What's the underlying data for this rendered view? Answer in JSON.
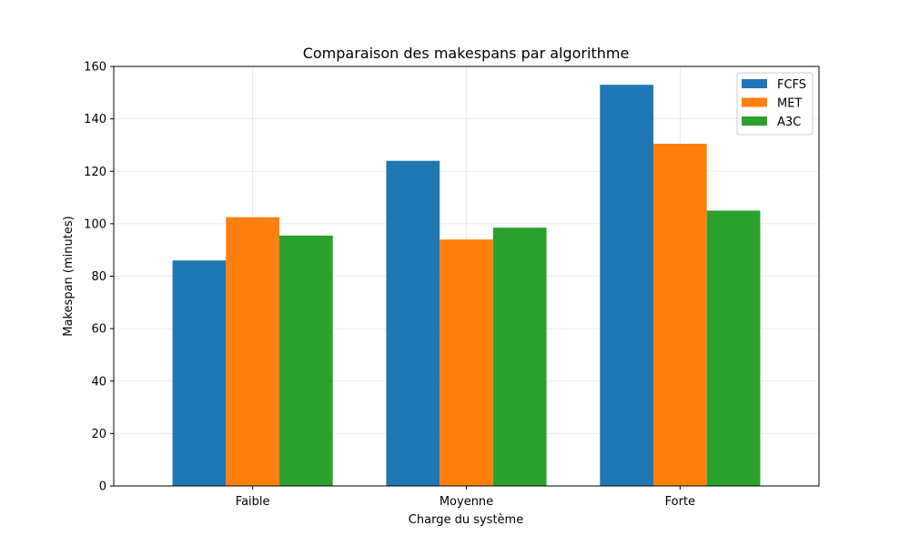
{
  "chart_data": {
    "type": "bar",
    "title": "Comparaison des makespans par algorithme",
    "xlabel": "Charge du système",
    "ylabel": "Makespan (minutes)",
    "categories": [
      "Faible",
      "Moyenne",
      "Forte"
    ],
    "series": [
      {
        "name": "FCFS",
        "color": "#1f77b4",
        "values": [
          86,
          124,
          153
        ]
      },
      {
        "name": "MET",
        "color": "#ff7f0e",
        "values": [
          102.5,
          94,
          130.5
        ]
      },
      {
        "name": "A3C",
        "color": "#2ca02c",
        "values": [
          95.5,
          98.5,
          105
        ]
      }
    ],
    "ylim": [
      0,
      160
    ],
    "yticks": [
      "0",
      "20",
      "40",
      "60",
      "80",
      "100",
      "120",
      "140",
      "160"
    ],
    "grid": true,
    "legend": "top-right"
  }
}
